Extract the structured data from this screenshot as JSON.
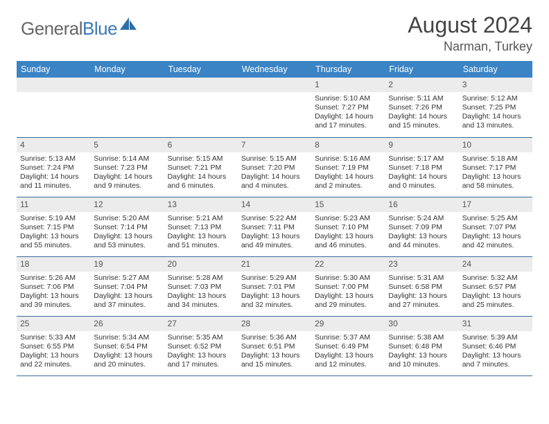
{
  "logo": {
    "part1": "General",
    "part2": "Blue"
  },
  "title": "August 2024",
  "location": "Narman, Turkey",
  "colors": {
    "header_bg": "#3a84c5",
    "header_text": "#ffffff",
    "daynum_bg": "#ececec",
    "border": "#3a6a9a",
    "logo_gray": "#666666",
    "logo_blue": "#3a7ab8"
  },
  "weekdays": [
    "Sunday",
    "Monday",
    "Tuesday",
    "Wednesday",
    "Thursday",
    "Friday",
    "Saturday"
  ],
  "weeks": [
    [
      {
        "blank": true
      },
      {
        "blank": true
      },
      {
        "blank": true
      },
      {
        "blank": true
      },
      {
        "day": "1",
        "sunrise": "Sunrise: 5:10 AM",
        "sunset": "Sunset: 7:27 PM",
        "dl1": "Daylight: 14 hours",
        "dl2": "and 17 minutes."
      },
      {
        "day": "2",
        "sunrise": "Sunrise: 5:11 AM",
        "sunset": "Sunset: 7:26 PM",
        "dl1": "Daylight: 14 hours",
        "dl2": "and 15 minutes."
      },
      {
        "day": "3",
        "sunrise": "Sunrise: 5:12 AM",
        "sunset": "Sunset: 7:25 PM",
        "dl1": "Daylight: 14 hours",
        "dl2": "and 13 minutes."
      }
    ],
    [
      {
        "day": "4",
        "sunrise": "Sunrise: 5:13 AM",
        "sunset": "Sunset: 7:24 PM",
        "dl1": "Daylight: 14 hours",
        "dl2": "and 11 minutes."
      },
      {
        "day": "5",
        "sunrise": "Sunrise: 5:14 AM",
        "sunset": "Sunset: 7:23 PM",
        "dl1": "Daylight: 14 hours",
        "dl2": "and 9 minutes."
      },
      {
        "day": "6",
        "sunrise": "Sunrise: 5:15 AM",
        "sunset": "Sunset: 7:21 PM",
        "dl1": "Daylight: 14 hours",
        "dl2": "and 6 minutes."
      },
      {
        "day": "7",
        "sunrise": "Sunrise: 5:15 AM",
        "sunset": "Sunset: 7:20 PM",
        "dl1": "Daylight: 14 hours",
        "dl2": "and 4 minutes."
      },
      {
        "day": "8",
        "sunrise": "Sunrise: 5:16 AM",
        "sunset": "Sunset: 7:19 PM",
        "dl1": "Daylight: 14 hours",
        "dl2": "and 2 minutes."
      },
      {
        "day": "9",
        "sunrise": "Sunrise: 5:17 AM",
        "sunset": "Sunset: 7:18 PM",
        "dl1": "Daylight: 14 hours",
        "dl2": "and 0 minutes."
      },
      {
        "day": "10",
        "sunrise": "Sunrise: 5:18 AM",
        "sunset": "Sunset: 7:17 PM",
        "dl1": "Daylight: 13 hours",
        "dl2": "and 58 minutes."
      }
    ],
    [
      {
        "day": "11",
        "sunrise": "Sunrise: 5:19 AM",
        "sunset": "Sunset: 7:15 PM",
        "dl1": "Daylight: 13 hours",
        "dl2": "and 55 minutes."
      },
      {
        "day": "12",
        "sunrise": "Sunrise: 5:20 AM",
        "sunset": "Sunset: 7:14 PM",
        "dl1": "Daylight: 13 hours",
        "dl2": "and 53 minutes."
      },
      {
        "day": "13",
        "sunrise": "Sunrise: 5:21 AM",
        "sunset": "Sunset: 7:13 PM",
        "dl1": "Daylight: 13 hours",
        "dl2": "and 51 minutes."
      },
      {
        "day": "14",
        "sunrise": "Sunrise: 5:22 AM",
        "sunset": "Sunset: 7:11 PM",
        "dl1": "Daylight: 13 hours",
        "dl2": "and 49 minutes."
      },
      {
        "day": "15",
        "sunrise": "Sunrise: 5:23 AM",
        "sunset": "Sunset: 7:10 PM",
        "dl1": "Daylight: 13 hours",
        "dl2": "and 46 minutes."
      },
      {
        "day": "16",
        "sunrise": "Sunrise: 5:24 AM",
        "sunset": "Sunset: 7:09 PM",
        "dl1": "Daylight: 13 hours",
        "dl2": "and 44 minutes."
      },
      {
        "day": "17",
        "sunrise": "Sunrise: 5:25 AM",
        "sunset": "Sunset: 7:07 PM",
        "dl1": "Daylight: 13 hours",
        "dl2": "and 42 minutes."
      }
    ],
    [
      {
        "day": "18",
        "sunrise": "Sunrise: 5:26 AM",
        "sunset": "Sunset: 7:06 PM",
        "dl1": "Daylight: 13 hours",
        "dl2": "and 39 minutes."
      },
      {
        "day": "19",
        "sunrise": "Sunrise: 5:27 AM",
        "sunset": "Sunset: 7:04 PM",
        "dl1": "Daylight: 13 hours",
        "dl2": "and 37 minutes."
      },
      {
        "day": "20",
        "sunrise": "Sunrise: 5:28 AM",
        "sunset": "Sunset: 7:03 PM",
        "dl1": "Daylight: 13 hours",
        "dl2": "and 34 minutes."
      },
      {
        "day": "21",
        "sunrise": "Sunrise: 5:29 AM",
        "sunset": "Sunset: 7:01 PM",
        "dl1": "Daylight: 13 hours",
        "dl2": "and 32 minutes."
      },
      {
        "day": "22",
        "sunrise": "Sunrise: 5:30 AM",
        "sunset": "Sunset: 7:00 PM",
        "dl1": "Daylight: 13 hours",
        "dl2": "and 29 minutes."
      },
      {
        "day": "23",
        "sunrise": "Sunrise: 5:31 AM",
        "sunset": "Sunset: 6:58 PM",
        "dl1": "Daylight: 13 hours",
        "dl2": "and 27 minutes."
      },
      {
        "day": "24",
        "sunrise": "Sunrise: 5:32 AM",
        "sunset": "Sunset: 6:57 PM",
        "dl1": "Daylight: 13 hours",
        "dl2": "and 25 minutes."
      }
    ],
    [
      {
        "day": "25",
        "sunrise": "Sunrise: 5:33 AM",
        "sunset": "Sunset: 6:55 PM",
        "dl1": "Daylight: 13 hours",
        "dl2": "and 22 minutes."
      },
      {
        "day": "26",
        "sunrise": "Sunrise: 5:34 AM",
        "sunset": "Sunset: 6:54 PM",
        "dl1": "Daylight: 13 hours",
        "dl2": "and 20 minutes."
      },
      {
        "day": "27",
        "sunrise": "Sunrise: 5:35 AM",
        "sunset": "Sunset: 6:52 PM",
        "dl1": "Daylight: 13 hours",
        "dl2": "and 17 minutes."
      },
      {
        "day": "28",
        "sunrise": "Sunrise: 5:36 AM",
        "sunset": "Sunset: 6:51 PM",
        "dl1": "Daylight: 13 hours",
        "dl2": "and 15 minutes."
      },
      {
        "day": "29",
        "sunrise": "Sunrise: 5:37 AM",
        "sunset": "Sunset: 6:49 PM",
        "dl1": "Daylight: 13 hours",
        "dl2": "and 12 minutes."
      },
      {
        "day": "30",
        "sunrise": "Sunrise: 5:38 AM",
        "sunset": "Sunset: 6:48 PM",
        "dl1": "Daylight: 13 hours",
        "dl2": "and 10 minutes."
      },
      {
        "day": "31",
        "sunrise": "Sunrise: 5:39 AM",
        "sunset": "Sunset: 6:46 PM",
        "dl1": "Daylight: 13 hours",
        "dl2": "and 7 minutes."
      }
    ]
  ]
}
